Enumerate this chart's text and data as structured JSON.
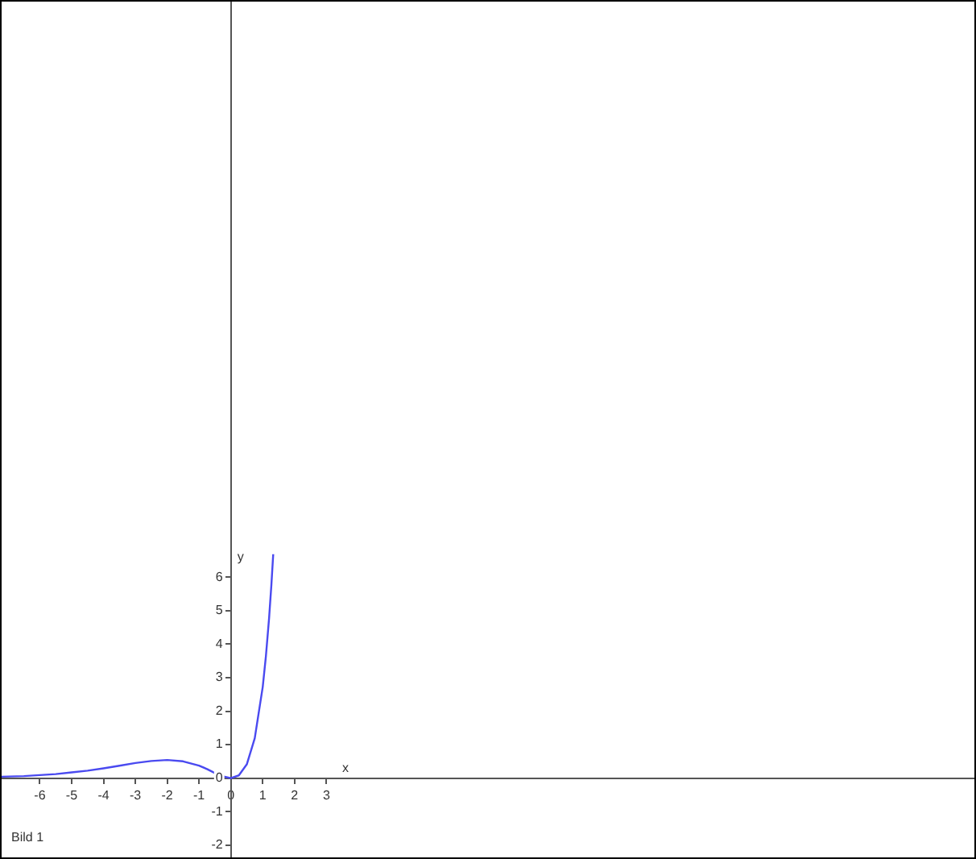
{
  "chart_data": {
    "type": "line",
    "xlabel": "x",
    "ylabel": "y",
    "x": [
      -7.2,
      -6.5,
      -6,
      -5.5,
      -5,
      -4.5,
      -4,
      -3.5,
      -3,
      -2.5,
      -2,
      -1.5,
      -1,
      -0.75,
      -0.5,
      -0.25,
      0,
      0.25,
      0.5,
      0.75,
      1,
      1.1,
      1.2,
      1.27,
      1.33
    ],
    "series": [
      {
        "color": "#4a4af0",
        "values": [
          0.04,
          0.06,
          0.09,
          0.12,
          0.17,
          0.22,
          0.29,
          0.37,
          0.45,
          0.51,
          0.54,
          0.5,
          0.37,
          0.27,
          0.15,
          0.05,
          0,
          0.08,
          0.41,
          1.19,
          2.72,
          3.64,
          4.78,
          5.74,
          6.69
        ]
      }
    ],
    "xlim": [
      -7.2,
      23.35
    ],
    "ylim": [
      -2.37,
      23.2
    ],
    "xticks": [
      -6,
      -5,
      -4,
      -3,
      -2,
      -1,
      0,
      1,
      2,
      3
    ],
    "yticks": [
      -2,
      -1,
      0,
      1,
      2,
      3,
      4,
      5,
      6
    ],
    "grid": false,
    "legend": false,
    "marker": "none",
    "line_style": "solid",
    "annotations": [
      "Bild 1"
    ]
  }
}
